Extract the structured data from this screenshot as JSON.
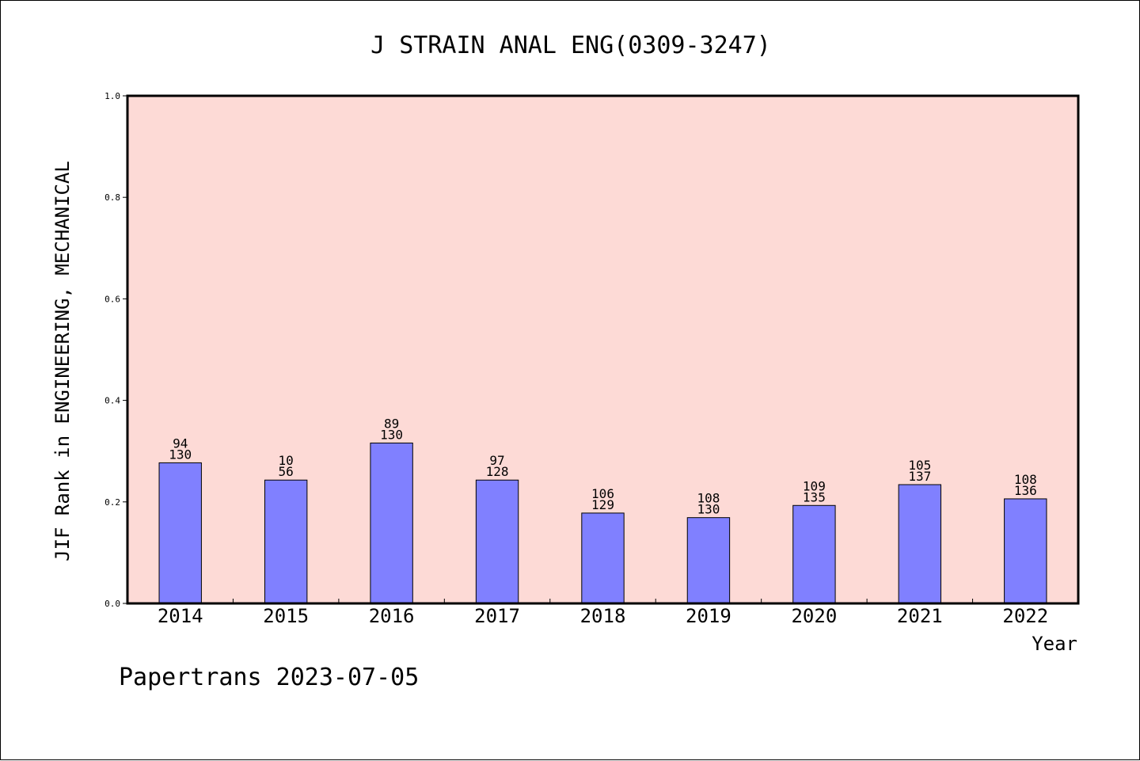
{
  "chart_data": {
    "type": "bar",
    "title": "J STRAIN ANAL ENG(0309-3247)",
    "ylabel": "JIF Rank in ENGINEERING, MECHANICAL",
    "xlabel": "Year",
    "ylim": [
      0,
      1.0
    ],
    "yticks": [
      "0.0",
      "0.2",
      "0.4",
      "0.6",
      "0.8",
      "1.0"
    ],
    "categories": [
      "2014",
      "2015",
      "2016",
      "2017",
      "2018",
      "2019",
      "2020",
      "2021",
      "2022"
    ],
    "values": [
      0.277,
      0.243,
      0.316,
      0.243,
      0.178,
      0.169,
      0.193,
      0.234,
      0.206
    ],
    "rank": [
      "94",
      "10",
      "89",
      "97",
      "106",
      "108",
      "109",
      "105",
      "108"
    ],
    "total": [
      "130",
      "56",
      "130",
      "128",
      "129",
      "130",
      "135",
      "137",
      "136"
    ],
    "grid": false,
    "colors": {
      "plot_bg": "#fddad6",
      "bar": "#8080ff",
      "axis": "#000000"
    }
  },
  "footer": "Papertrans 2023-07-05"
}
